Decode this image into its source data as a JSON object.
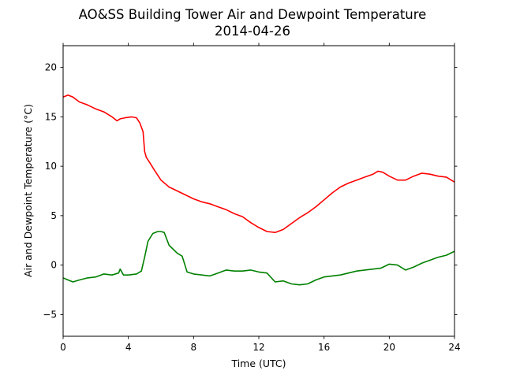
{
  "chart_data": {
    "type": "line",
    "title": [
      "AO&SS Building Tower Air and Dewpoint Temperature",
      "2014-04-26"
    ],
    "xlabel": "Time (UTC)",
    "ylabel": "Air and Dewpoint Temperature (°C)",
    "xlim": [
      0,
      24
    ],
    "ylim": [
      -7.2,
      22.2
    ],
    "xticks": [
      0,
      4,
      8,
      12,
      16,
      20,
      24
    ],
    "yticks": [
      -5,
      0,
      5,
      10,
      15,
      20
    ],
    "xtick_labels": [
      "0",
      "4",
      "8",
      "12",
      "16",
      "20",
      "24"
    ],
    "ytick_labels": [
      "−5",
      "0",
      "5",
      "10",
      "15",
      "20"
    ],
    "grid": false,
    "series": [
      {
        "color": "#ff0000",
        "x": [
          0,
          0.3,
          0.6,
          1.0,
          1.5,
          2.0,
          2.5,
          3.0,
          3.3,
          3.5,
          3.8,
          4.2,
          4.5,
          4.7,
          4.9,
          5.0,
          5.1,
          5.3,
          5.6,
          6.0,
          6.5,
          7.0,
          7.5,
          8.0,
          8.5,
          9.0,
          9.5,
          10.0,
          10.5,
          11.0,
          11.5,
          12.0,
          12.5,
          13.0,
          13.5,
          14.0,
          14.5,
          15.0,
          15.5,
          16.0,
          16.5,
          17.0,
          17.5,
          18.0,
          18.5,
          19.0,
          19.3,
          19.6,
          20.0,
          20.5,
          21.0,
          21.5,
          22.0,
          22.5,
          23.0,
          23.5,
          24.0
        ],
        "y": [
          17.0,
          17.2,
          17.0,
          16.5,
          16.2,
          15.8,
          15.5,
          15.0,
          14.6,
          14.8,
          14.9,
          15.0,
          14.9,
          14.4,
          13.5,
          11.5,
          10.9,
          10.4,
          9.6,
          8.6,
          7.9,
          7.5,
          7.1,
          6.7,
          6.4,
          6.2,
          5.9,
          5.6,
          5.2,
          4.9,
          4.3,
          3.8,
          3.4,
          3.3,
          3.6,
          4.2,
          4.8,
          5.3,
          5.9,
          6.6,
          7.3,
          7.9,
          8.3,
          8.6,
          8.9,
          9.2,
          9.5,
          9.4,
          9.0,
          8.6,
          8.6,
          9.0,
          9.3,
          9.2,
          9.0,
          8.9,
          8.4
        ]
      },
      {
        "color": "#008000",
        "x": [
          0,
          0.3,
          0.6,
          1.0,
          1.5,
          2.0,
          2.5,
          3.0,
          3.4,
          3.5,
          3.7,
          4.0,
          4.5,
          4.8,
          5.0,
          5.2,
          5.5,
          5.8,
          6.0,
          6.2,
          6.5,
          7.0,
          7.3,
          7.6,
          8.0,
          8.5,
          9.0,
          9.5,
          10.0,
          10.5,
          11.0,
          11.5,
          12.0,
          12.5,
          13.0,
          13.5,
          14.0,
          14.5,
          15.0,
          15.5,
          16.0,
          16.5,
          17.0,
          17.5,
          18.0,
          18.5,
          19.0,
          19.5,
          20.0,
          20.5,
          21.0,
          21.5,
          22.0,
          22.5,
          23.0,
          23.5,
          24.0
        ],
        "y": [
          -1.3,
          -1.5,
          -1.7,
          -1.5,
          -1.3,
          -1.2,
          -0.9,
          -1.0,
          -0.8,
          -0.4,
          -1.0,
          -1.0,
          -0.9,
          -0.6,
          0.8,
          2.4,
          3.2,
          3.4,
          3.4,
          3.3,
          2.0,
          1.2,
          0.9,
          -0.7,
          -0.9,
          -1.0,
          -1.1,
          -0.8,
          -0.5,
          -0.6,
          -0.6,
          -0.5,
          -0.7,
          -0.8,
          -1.7,
          -1.6,
          -1.9,
          -2.0,
          -1.9,
          -1.5,
          -1.2,
          -1.1,
          -1.0,
          -0.8,
          -0.6,
          -0.5,
          -0.4,
          -0.3,
          0.1,
          0.0,
          -0.5,
          -0.2,
          0.2,
          0.5,
          0.8,
          1.0,
          1.4
        ]
      }
    ]
  }
}
